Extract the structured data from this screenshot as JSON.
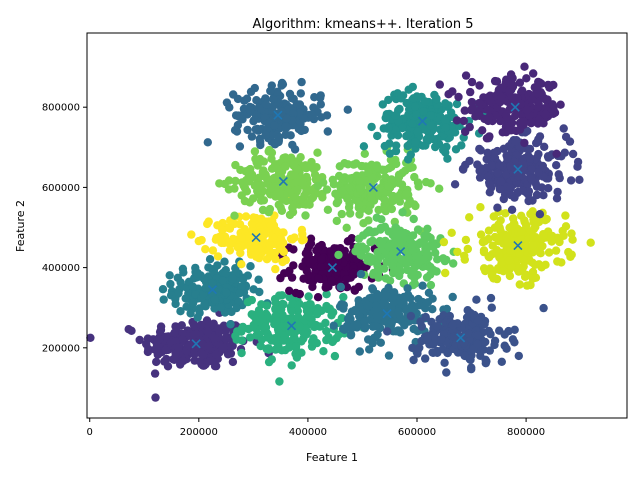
{
  "chart_data": {
    "type": "scatter",
    "title": "Algorithm: kmeans++. Iteration 5",
    "xlabel": "Feature 1",
    "ylabel": "Feature 2",
    "xlim": [
      -5000,
      985000
    ],
    "ylim": [
      25000,
      985000
    ],
    "xticks": [
      0,
      200000,
      400000,
      600000,
      800000
    ],
    "xtick_labels": [
      "0",
      "200000",
      "400000",
      "600000",
      "800000"
    ],
    "yticks": [
      200000,
      400000,
      600000,
      800000
    ],
    "ytick_labels": [
      "200000",
      "400000",
      "600000",
      "800000"
    ],
    "grid": false,
    "legend": "none",
    "point_size_note": "dense clusters of points, centroids marked with x",
    "centroid_color": "#1f77b4",
    "clusters": [
      {
        "centroid": [
          195000,
          210000
        ],
        "color": "#46327e",
        "spread": [
          48000,
          32000
        ],
        "count": 230
      },
      {
        "centroid": [
          225000,
          345000
        ],
        "color": "#277f8e",
        "spread": [
          36000,
          30000
        ],
        "count": 190
      },
      {
        "centroid": [
          370000,
          255000
        ],
        "color": "#2ab07f",
        "spread": [
          44000,
          36000
        ],
        "count": 210
      },
      {
        "centroid": [
          445000,
          400000
        ],
        "color": "#440154",
        "spread": [
          38000,
          30000
        ],
        "count": 200
      },
      {
        "centroid": [
          305000,
          475000
        ],
        "color": "#fde725",
        "spread": [
          38000,
          30000
        ],
        "count": 170
      },
      {
        "centroid": [
          355000,
          615000
        ],
        "color": "#7ad151",
        "spread": [
          44000,
          36000
        ],
        "count": 210
      },
      {
        "centroid": [
          345000,
          780000
        ],
        "color": "#31688e",
        "spread": [
          40000,
          32000
        ],
        "count": 190
      },
      {
        "centroid": [
          520000,
          600000
        ],
        "color": "#73d055",
        "spread": [
          42000,
          38000
        ],
        "count": 220
      },
      {
        "centroid": [
          570000,
          440000
        ],
        "color": "#5ec962",
        "spread": [
          38000,
          34000
        ],
        "count": 200
      },
      {
        "centroid": [
          545000,
          285000
        ],
        "color": "#2c728e",
        "spread": [
          42000,
          36000
        ],
        "count": 200
      },
      {
        "centroid": [
          610000,
          765000
        ],
        "color": "#21918c",
        "spread": [
          40000,
          36000
        ],
        "count": 220
      },
      {
        "centroid": [
          680000,
          225000
        ],
        "color": "#3b528b",
        "spread": [
          42000,
          34000
        ],
        "count": 200
      },
      {
        "centroid": [
          785000,
          455000
        ],
        "color": "#d2e21b",
        "spread": [
          44000,
          40000
        ],
        "count": 230
      },
      {
        "centroid": [
          785000,
          645000
        ],
        "color": "#414487",
        "spread": [
          46000,
          36000
        ],
        "count": 220
      },
      {
        "centroid": [
          780000,
          800000
        ],
        "color": "#482878",
        "spread": [
          46000,
          34000
        ],
        "count": 210
      }
    ]
  }
}
